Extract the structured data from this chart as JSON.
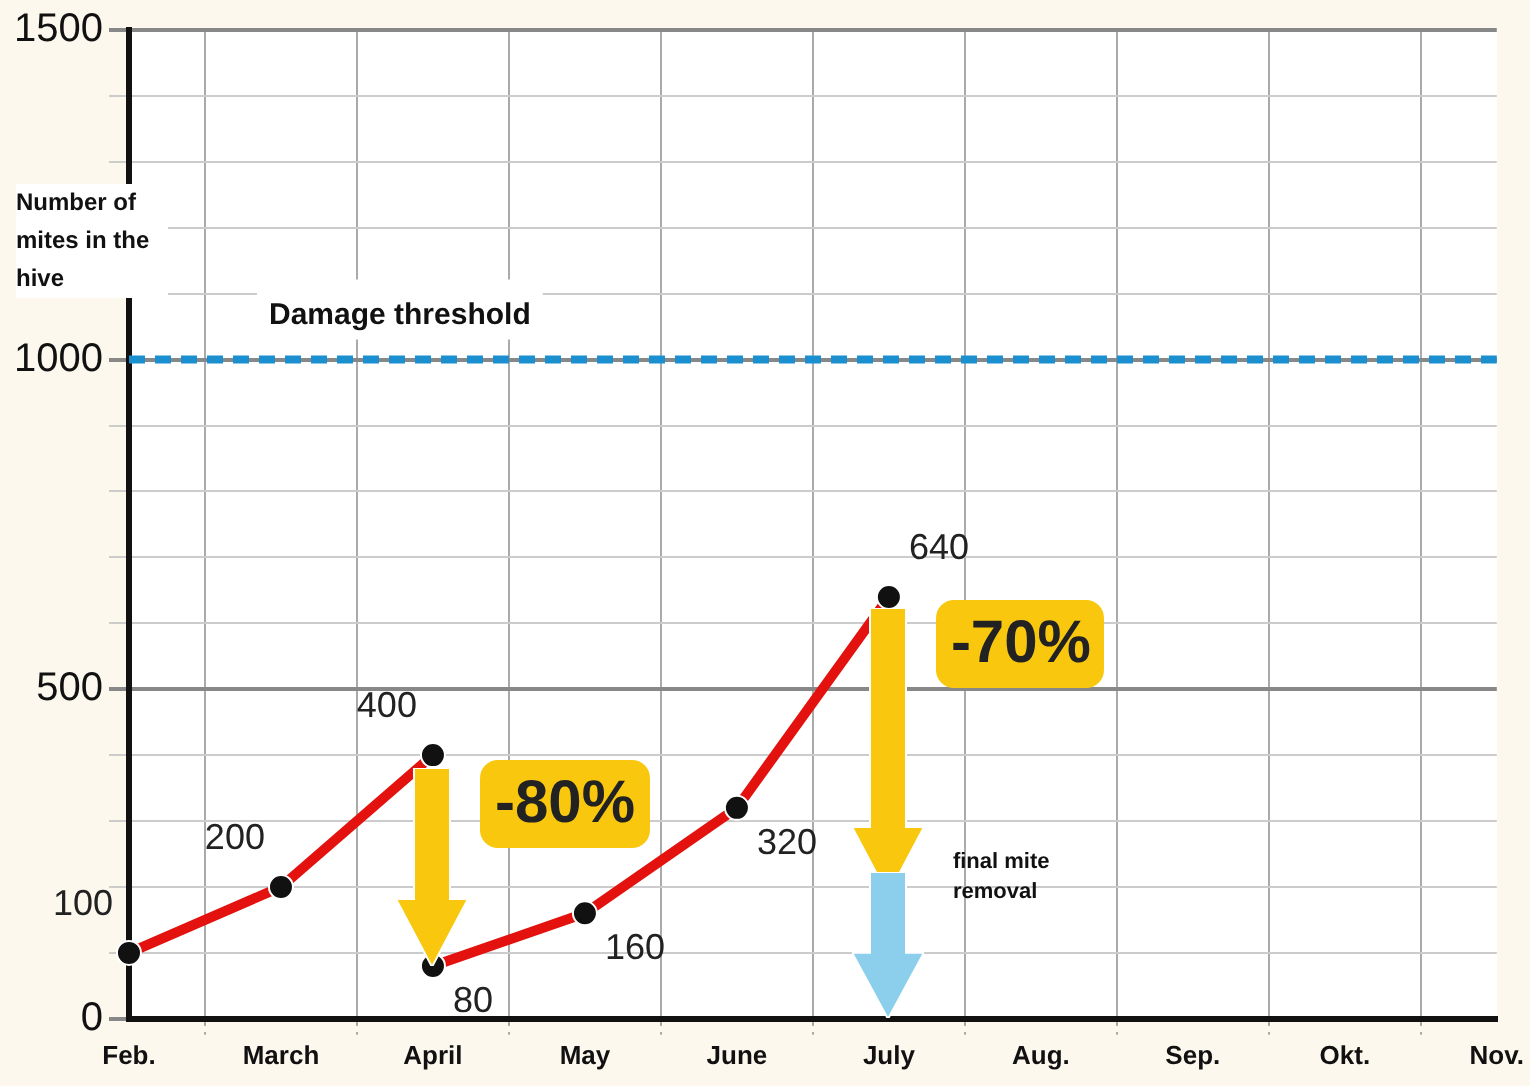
{
  "chart_data": {
    "type": "line",
    "ylabel": "Number of mites in the hive",
    "categories": [
      "Feb.",
      "March",
      "April",
      "May",
      "June",
      "July",
      "Aug.",
      "Sep.",
      "Okt.",
      "Nov."
    ],
    "series": [
      {
        "color": "#e3120f",
        "values": [
          100,
          200,
          400,
          null,
          null,
          null,
          null,
          null,
          null,
          null
        ]
      },
      {
        "color": "#e3120f",
        "values": [
          null,
          null,
          80,
          160,
          320,
          640,
          null,
          null,
          null,
          null
        ]
      }
    ],
    "ylim": [
      0,
      1500
    ],
    "yticks": [
      0,
      {
        "value": 100,
        "label": null
      },
      {
        "value": 200,
        "label": null
      },
      {
        "value": 300,
        "label": null
      },
      {
        "value": 400,
        "label": null
      },
      500,
      {
        "value": 600,
        "label": null
      },
      {
        "value": 700,
        "label": null
      },
      {
        "value": 800,
        "label": null
      },
      {
        "value": 900,
        "label": null
      },
      1000,
      {
        "value": 1100,
        "label": null
      },
      {
        "value": 1200,
        "label": null
      },
      {
        "value": 1300,
        "label": null
      },
      {
        "value": 1400,
        "label": null
      },
      1500
    ],
    "ref_lines": [
      {
        "axis": "y",
        "value": 1000,
        "label": "Damage threshold",
        "color": "#1b8fd0",
        "line_style": "dashed"
      }
    ],
    "annotations": [
      {
        "text": "-80%",
        "x": "April",
        "y": 400
      },
      {
        "text": "-70%",
        "x": "July",
        "y": 640
      },
      "final mite removal"
    ],
    "data_labels": true,
    "grid": true,
    "legend": false,
    "marker": "circle",
    "line_style": "solid"
  }
}
